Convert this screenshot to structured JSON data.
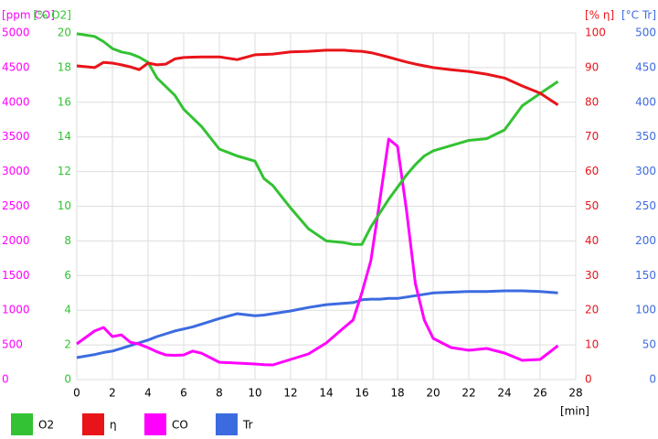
{
  "chart_data": {
    "type": "line",
    "x_label": "[min]",
    "xlim": [
      0,
      28
    ],
    "xticks": [
      0,
      2,
      4,
      6,
      8,
      10,
      12,
      14,
      16,
      18,
      20,
      22,
      24,
      26,
      28
    ],
    "grid": true,
    "axes": [
      {
        "label": "[ppm CO]",
        "color": "#ff00ff",
        "lim": [
          0,
          5000
        ],
        "ticks": [
          0,
          500,
          1000,
          1500,
          2000,
          2500,
          3000,
          3500,
          4000,
          4500,
          5000
        ]
      },
      {
        "label": "[% O2]",
        "color": "#33c233",
        "lim": [
          0,
          20
        ],
        "ticks": [
          0,
          2,
          4,
          6,
          8,
          10,
          12,
          14,
          16,
          18,
          20
        ]
      },
      {
        "label": "[% η]",
        "color": "#e8141a",
        "lim": [
          0,
          100
        ],
        "ticks": [
          0,
          10,
          20,
          30,
          40,
          50,
          60,
          70,
          80,
          90,
          100
        ]
      },
      {
        "label": "[°C Tr]",
        "color": "#3c6be0",
        "lim": [
          0,
          500
        ],
        "ticks": [
          0,
          50,
          100,
          150,
          200,
          250,
          300,
          350,
          400,
          450,
          500
        ]
      }
    ],
    "x": [
      0,
      1,
      1.5,
      2,
      2.5,
      3,
      3.5,
      4,
      4.5,
      5,
      5.5,
      6,
      6.5,
      7,
      8,
      9,
      10,
      10.5,
      11,
      12,
      13,
      14,
      15,
      15.5,
      16,
      16.5,
      17,
      17.5,
      18,
      18.5,
      19,
      19.5,
      20,
      21,
      22,
      23,
      24,
      25,
      26,
      27
    ],
    "series": [
      {
        "name": "O2",
        "color": "#33c233",
        "axis": 1,
        "values": [
          19.95,
          19.8,
          19.5,
          19.1,
          18.9,
          18.8,
          18.6,
          18.3,
          17.4,
          16.9,
          16.4,
          15.6,
          15.1,
          14.6,
          13.3,
          12.9,
          12.6,
          11.6,
          11.2,
          9.9,
          8.7,
          8.0,
          7.9,
          7.8,
          7.8,
          8.8,
          9.6,
          10.4,
          11.1,
          11.8,
          12.4,
          12.9,
          13.2,
          13.5,
          13.8,
          13.9,
          14.4,
          15.8,
          16.5,
          17.2
        ]
      },
      {
        "name": "η",
        "color": "#e8141a",
        "axis": 2,
        "values": [
          90.5,
          90,
          91.5,
          91.3,
          90.8,
          90.2,
          89.4,
          91.3,
          90.8,
          91,
          92.5,
          92.9,
          93,
          93.1,
          93.1,
          92.3,
          93.7,
          93.8,
          93.9,
          94.5,
          94.7,
          95,
          95,
          94.8,
          94.7,
          94.3,
          93.7,
          93,
          92.3,
          91.6,
          91,
          90.5,
          90,
          89.4,
          88.9,
          88.1,
          87,
          84.7,
          82.6,
          79.2
        ]
      },
      {
        "name": "CO",
        "color": "#ff00ff",
        "axis": 0,
        "values": [
          515,
          700,
          750,
          620,
          645,
          540,
          510,
          460,
          400,
          355,
          350,
          355,
          410,
          380,
          250,
          237,
          224,
          215,
          211,
          290,
          370,
          528,
          750,
          858,
          1253,
          1715,
          2573,
          3470,
          3364,
          2441,
          1385,
          858,
          594,
          462,
          422,
          449,
          383,
          277,
          290,
          488
        ]
      },
      {
        "name": "Tr",
        "color": "#3c6be0",
        "axis": 3,
        "values": [
          31.7,
          36,
          39,
          41,
          45,
          49,
          53,
          57,
          62,
          66,
          70,
          73,
          76,
          80,
          88,
          95,
          92,
          93,
          95,
          99,
          104,
          108,
          110,
          111,
          115,
          116,
          116,
          117,
          117,
          119,
          121,
          123,
          125,
          126,
          127,
          127,
          128,
          128,
          127,
          125
        ]
      }
    ]
  }
}
